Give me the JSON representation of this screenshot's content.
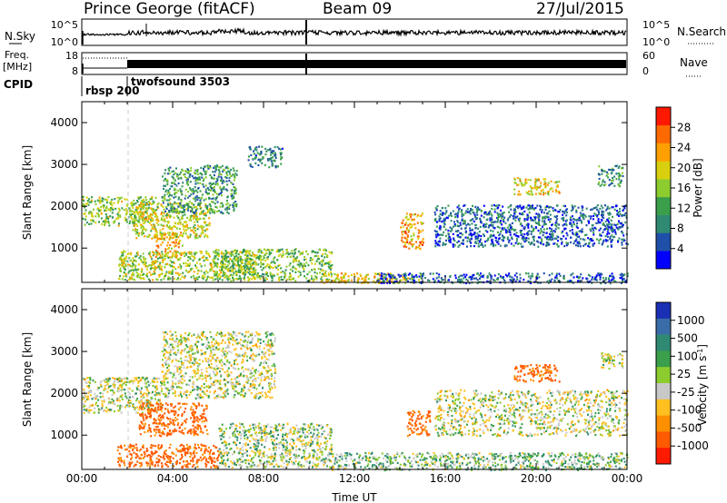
{
  "header": {
    "station": "Prince George (fitACF)",
    "beam": "Beam 09",
    "date": "27/Jul/2015"
  },
  "nsky_panel": {
    "label": "N.Sky",
    "right_label": "N.Search",
    "ticks": [
      "10^5",
      "10^0"
    ],
    "right_ticks": [
      "10^5",
      "10^0"
    ]
  },
  "freq_panel": {
    "label_top": "Freq.",
    "label_bottom": "[MHz]",
    "right_label": "Nave",
    "ticks": [
      "18",
      "8"
    ],
    "right_ticks": [
      "60",
      "0"
    ]
  },
  "cpid": {
    "label": "CPID",
    "modes": [
      {
        "name": "rbsp 200",
        "start_hour": 0
      },
      {
        "name": "twofsound 3503",
        "start_hour": 1.95
      }
    ]
  },
  "chart_data": [
    {
      "type": "heatmap",
      "name": "power",
      "ylabel": "Slant Range [km]",
      "ylim": [
        180,
        4500
      ],
      "yticks": [
        "1000",
        "2000",
        "3000",
        "4000"
      ],
      "xlim_hours": [
        0,
        24
      ],
      "colorbar": {
        "label": "Power [dB]",
        "min": 0,
        "max": 32,
        "ticks": [
          "4",
          "8",
          "12",
          "16",
          "20",
          "24",
          "28"
        ],
        "colors": [
          "#0000ff",
          "#1f4fa8",
          "#2f8a73",
          "#3a9f4a",
          "#8ccc2e",
          "#d8d00e",
          "#ffa000",
          "#ff6a00",
          "#ff1800"
        ]
      },
      "regions": [
        {
          "t0": 0.0,
          "t1": 3.3,
          "r0": 1550,
          "r1": 2250,
          "mean_db": 16
        },
        {
          "t0": 2.2,
          "t1": 5.6,
          "r0": 1250,
          "r1": 2100,
          "mean_db": 19
        },
        {
          "t0": 3.2,
          "t1": 4.4,
          "r0": 800,
          "r1": 1400,
          "mean_db": 22
        },
        {
          "t0": 3.5,
          "t1": 6.8,
          "r0": 1850,
          "r1": 3000,
          "mean_db": 11
        },
        {
          "t0": 7.3,
          "t1": 8.8,
          "r0": 2950,
          "r1": 3450,
          "mean_db": 9
        },
        {
          "t0": 1.6,
          "t1": 7.6,
          "r0": 250,
          "r1": 950,
          "mean_db": 17
        },
        {
          "t0": 5.8,
          "t1": 11.0,
          "r0": 230,
          "r1": 1000,
          "mean_db": 15
        },
        {
          "t0": 10.5,
          "t1": 15.0,
          "r0": 180,
          "r1": 420,
          "mean_db": 20
        },
        {
          "t0": 14.0,
          "t1": 15.0,
          "r0": 1000,
          "r1": 1850,
          "mean_db": 23
        },
        {
          "t0": 13.0,
          "t1": 24.0,
          "r0": 180,
          "r1": 420,
          "mean_db": 6
        },
        {
          "t0": 15.5,
          "t1": 24.0,
          "r0": 1050,
          "r1": 1500,
          "mean_db": 6
        },
        {
          "t0": 15.5,
          "t1": 24.0,
          "r0": 1500,
          "r1": 2050,
          "mean_db": 7
        },
        {
          "t0": 19.0,
          "t1": 21.0,
          "r0": 2300,
          "r1": 2700,
          "mean_db": 20
        },
        {
          "t0": 22.7,
          "t1": 23.8,
          "r0": 2500,
          "r1": 3000,
          "mean_db": 10
        }
      ]
    },
    {
      "type": "heatmap",
      "name": "velocity",
      "ylabel": "Slant Range [km]",
      "xlabel": "Time UT",
      "ylim": [
        180,
        4500
      ],
      "yticks": [
        "1000",
        "2000",
        "3000",
        "4000"
      ],
      "xlim_hours": [
        0,
        24
      ],
      "xticks": [
        "00:00",
        "04:00",
        "08:00",
        "12:00",
        "16:00",
        "20:00",
        "00:00"
      ],
      "colorbar": {
        "label": "Velocity [m s",
        "label_sup": "-1",
        "label_end": "]",
        "ticks": [
          "1000",
          "500",
          "100",
          "25",
          "-25",
          "-100",
          "-500",
          "-1000"
        ],
        "colors": [
          "#1a2fb4",
          "#3a6ca8",
          "#2f8a73",
          "#3a9f4a",
          "#8ccc2e",
          "#c8c8c8",
          "#ffc020",
          "#ff9000",
          "#ff5a00",
          "#ff1a00"
        ]
      },
      "regions": [
        {
          "t0": 0.0,
          "t1": 3.5,
          "r0": 1550,
          "r1": 2400,
          "mean_ms": 0
        },
        {
          "t0": 2.5,
          "t1": 5.5,
          "r0": 1000,
          "r1": 1800,
          "mean_ms": -300
        },
        {
          "t0": 1.5,
          "t1": 6.0,
          "r0": 250,
          "r1": 800,
          "mean_ms": -300
        },
        {
          "t0": 3.5,
          "t1": 8.5,
          "r0": 1900,
          "r1": 3500,
          "mean_ms": 0
        },
        {
          "t0": 6.0,
          "t1": 11.0,
          "r0": 250,
          "r1": 1300,
          "mean_ms": 30
        },
        {
          "t0": 11.0,
          "t1": 24.0,
          "r0": 180,
          "r1": 600,
          "mean_ms": 60
        },
        {
          "t0": 14.3,
          "t1": 15.3,
          "r0": 1000,
          "r1": 1600,
          "mean_ms": -300
        },
        {
          "t0": 15.5,
          "t1": 24.0,
          "r0": 1000,
          "r1": 2100,
          "mean_ms": 0
        },
        {
          "t0": 19.0,
          "t1": 21.0,
          "r0": 2300,
          "r1": 2700,
          "mean_ms": -300
        },
        {
          "t0": 22.8,
          "t1": 23.8,
          "r0": 2600,
          "r1": 3000,
          "mean_ms": 0
        }
      ]
    }
  ]
}
